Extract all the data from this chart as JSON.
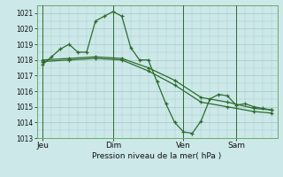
{
  "xlabel": "Pression niveau de la mer( hPa )",
  "bg_color": "#cce8e8",
  "grid_color": "#aacccc",
  "line_color": "#2d6b2d",
  "ylim": [
    1013.0,
    1021.5
  ],
  "xlim": [
    -4,
    160
  ],
  "yticks": [
    1013,
    1014,
    1015,
    1016,
    1017,
    1018,
    1019,
    1020,
    1021
  ],
  "day_labels": [
    "Jeu",
    "Dim",
    "Ven",
    "Sam"
  ],
  "day_positions": [
    0,
    48,
    96,
    132
  ],
  "series1_x": [
    0,
    6,
    12,
    18,
    24,
    30,
    36,
    42,
    48,
    54,
    60,
    66,
    72,
    78,
    84,
    90,
    96,
    102,
    108,
    114,
    120,
    126,
    132,
    138,
    144,
    150,
    156
  ],
  "series1_y": [
    1017.7,
    1018.2,
    1018.7,
    1019.0,
    1018.5,
    1018.5,
    1020.5,
    1020.8,
    1021.1,
    1020.8,
    1018.8,
    1018.0,
    1018.0,
    1016.6,
    1015.2,
    1014.0,
    1013.4,
    1013.3,
    1014.1,
    1015.5,
    1015.8,
    1015.7,
    1015.1,
    1015.2,
    1015.0,
    1014.9,
    1014.8
  ],
  "series2_x": [
    0,
    18,
    36,
    54,
    72,
    90,
    108,
    126,
    144,
    156
  ],
  "series2_y": [
    1018.0,
    1018.1,
    1018.2,
    1018.1,
    1017.5,
    1016.7,
    1015.6,
    1015.3,
    1014.9,
    1014.8
  ],
  "series3_x": [
    0,
    18,
    36,
    54,
    72,
    90,
    108,
    126,
    144,
    156
  ],
  "series3_y": [
    1017.9,
    1018.0,
    1018.1,
    1018.0,
    1017.3,
    1016.4,
    1015.3,
    1015.0,
    1014.7,
    1014.6
  ]
}
